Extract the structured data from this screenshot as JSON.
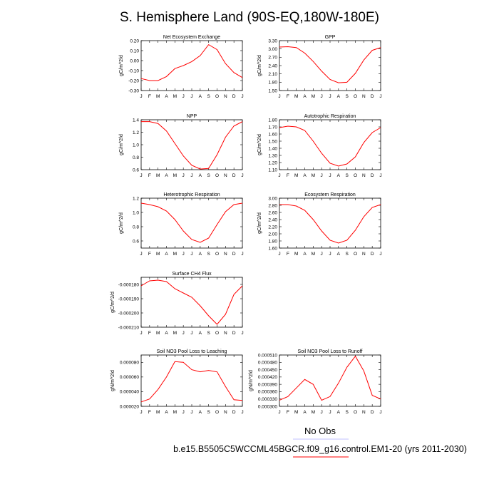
{
  "figure": {
    "title": "S. Hemisphere Land (90S-EQ,180W-180E)",
    "legend": [
      {
        "label": "No Obs",
        "color": "#c0c0ff"
      },
      {
        "label": "b.e15.B5505C5WCCML45BGCR.f09_g16.control.EM1-20 (yrs 2011-2030)",
        "color": "#ff0000"
      }
    ]
  },
  "chart_data": [
    {
      "type": "line",
      "title": "Net Ecosystem Exchange",
      "ylabel": "gC/m^2/d",
      "x": [
        "J",
        "F",
        "M",
        "A",
        "M",
        "J",
        "J",
        "A",
        "S",
        "O",
        "N",
        "D",
        "J"
      ],
      "ylim": [
        -0.3,
        0.2
      ],
      "yticks": [
        "0.20",
        "0.10",
        "0.00",
        "-0.10",
        "-0.20",
        "-0.30"
      ],
      "ytick_values": [
        0.2,
        0.1,
        0.0,
        -0.1,
        -0.2,
        -0.3
      ],
      "series": [
        {
          "color": "#ff0000",
          "values": [
            -0.18,
            -0.2,
            -0.2,
            -0.16,
            -0.08,
            -0.05,
            -0.01,
            0.05,
            0.16,
            0.11,
            -0.03,
            -0.12,
            -0.17
          ]
        }
      ]
    },
    {
      "type": "line",
      "title": "GPP",
      "ylabel": "gC/m^2/d",
      "x": [
        "J",
        "F",
        "M",
        "A",
        "M",
        "J",
        "J",
        "A",
        "S",
        "O",
        "N",
        "D",
        "J"
      ],
      "ylim": [
        1.5,
        3.3
      ],
      "yticks": [
        "3.30",
        "3.00",
        "2.70",
        "2.40",
        "2.10",
        "1.80",
        "1.50"
      ],
      "ytick_values": [
        3.3,
        3.0,
        2.7,
        2.4,
        2.1,
        1.8,
        1.5
      ],
      "series": [
        {
          "color": "#ff0000",
          "values": [
            3.07,
            3.08,
            3.05,
            2.85,
            2.55,
            2.2,
            1.9,
            1.78,
            1.8,
            2.12,
            2.6,
            2.95,
            3.05
          ]
        }
      ]
    },
    {
      "type": "line",
      "title": "NPP",
      "ylabel": "gC/m^2/d",
      "x": [
        "J",
        "F",
        "M",
        "A",
        "M",
        "J",
        "J",
        "A",
        "S",
        "O",
        "N",
        "D",
        "J"
      ],
      "ylim": [
        0.6,
        1.4
      ],
      "yticks": [
        "1.4",
        "1.2",
        "1.0",
        "0.8",
        "0.6"
      ],
      "ytick_values": [
        1.4,
        1.2,
        1.0,
        0.8,
        0.6
      ],
      "series": [
        {
          "color": "#ff0000",
          "values": [
            1.37,
            1.37,
            1.34,
            1.22,
            1.02,
            0.82,
            0.67,
            0.61,
            0.62,
            0.84,
            1.12,
            1.3,
            1.37
          ]
        }
      ]
    },
    {
      "type": "line",
      "title": "Autotrophic Respiration",
      "ylabel": "gC/m^2/d",
      "x": [
        "J",
        "F",
        "M",
        "A",
        "M",
        "J",
        "J",
        "A",
        "S",
        "O",
        "N",
        "D",
        "J"
      ],
      "ylim": [
        1.1,
        1.8
      ],
      "yticks": [
        "1.80",
        "1.70",
        "1.60",
        "1.50",
        "1.40",
        "1.30",
        "1.20",
        "1.10"
      ],
      "ytick_values": [
        1.8,
        1.7,
        1.6,
        1.5,
        1.4,
        1.3,
        1.2,
        1.1
      ],
      "series": [
        {
          "color": "#ff0000",
          "values": [
            1.69,
            1.71,
            1.7,
            1.65,
            1.5,
            1.33,
            1.19,
            1.15,
            1.18,
            1.28,
            1.48,
            1.62,
            1.69
          ]
        }
      ]
    },
    {
      "type": "line",
      "title": "Heterotrophic Respiration",
      "ylabel": "gC/m^2/d",
      "x": [
        "J",
        "F",
        "M",
        "A",
        "M",
        "J",
        "J",
        "A",
        "S",
        "O",
        "N",
        "D",
        "J"
      ],
      "ylim": [
        0.5,
        1.2
      ],
      "yticks": [
        "1.2",
        "1.0",
        "0.8",
        "0.6"
      ],
      "ytick_values": [
        1.2,
        1.0,
        0.8,
        0.6
      ],
      "series": [
        {
          "color": "#ff0000",
          "values": [
            1.13,
            1.11,
            1.08,
            1.02,
            0.9,
            0.74,
            0.62,
            0.58,
            0.64,
            0.83,
            1.01,
            1.11,
            1.13
          ]
        }
      ]
    },
    {
      "type": "line",
      "title": "Ecosystem Respiration",
      "ylabel": "gC/m^2/d",
      "x": [
        "J",
        "F",
        "M",
        "A",
        "M",
        "J",
        "J",
        "A",
        "S",
        "O",
        "N",
        "D",
        "J"
      ],
      "ylim": [
        1.6,
        3.0
      ],
      "yticks": [
        "3.00",
        "2.80",
        "2.60",
        "2.40",
        "2.20",
        "2.00",
        "1.80",
        "1.60"
      ],
      "ytick_values": [
        3.0,
        2.8,
        2.6,
        2.4,
        2.2,
        2.0,
        1.8,
        1.6
      ],
      "series": [
        {
          "color": "#ff0000",
          "values": [
            2.82,
            2.82,
            2.78,
            2.66,
            2.4,
            2.08,
            1.82,
            1.74,
            1.82,
            2.1,
            2.48,
            2.74,
            2.82
          ]
        }
      ]
    },
    {
      "type": "line",
      "title": "Surface CH4 Flux",
      "ylabel": "gC/m^2/d",
      "x": [
        "J",
        "F",
        "M",
        "A",
        "M",
        "J",
        "J",
        "A",
        "S",
        "O",
        "N",
        "D",
        "J"
      ],
      "ylim": [
        -0.00021,
        -0.000175
      ],
      "yticks": [
        "-0.000180",
        "-0.000190",
        "-0.000200",
        "-0.000210"
      ],
      "ytick_values": [
        -0.00018,
        -0.00019,
        -0.0002,
        -0.00021
      ],
      "series": [
        {
          "color": "#ff0000",
          "values": [
            -0.000181,
            -0.0001775,
            -0.000177,
            -0.000178,
            -0.000183,
            -0.000186,
            -0.000189,
            -0.000195,
            -0.000202,
            -0.000208,
            -0.000201,
            -0.000187,
            -0.000181
          ]
        }
      ]
    },
    {
      "type": "line",
      "title": "Soil NO3 Pool Loss to Leaching",
      "ylabel": "gN/m^2/d",
      "x": [
        "J",
        "F",
        "M",
        "A",
        "M",
        "J",
        "J",
        "A",
        "S",
        "O",
        "N",
        "D",
        "J"
      ],
      "ylim": [
        2e-05,
        9e-05
      ],
      "yticks": [
        "0.000080",
        "0.000060",
        "0.000040",
        "0.000020"
      ],
      "ytick_values": [
        8e-05,
        6e-05,
        4e-05,
        2e-05
      ],
      "series": [
        {
          "color": "#ff0000",
          "values": [
            2.6e-05,
            3e-05,
            4.3e-05,
            6e-05,
            8.1e-05,
            8e-05,
            7e-05,
            6.7e-05,
            6.9e-05,
            6.7e-05,
            4.7e-05,
            2.9e-05,
            2.8e-05
          ]
        }
      ]
    },
    {
      "type": "line",
      "title": "Soil NO3 Pool Loss to Runoff",
      "ylabel": "gN/m^2/d",
      "x": [
        "J",
        "F",
        "M",
        "A",
        "M",
        "J",
        "J",
        "A",
        "S",
        "O",
        "N",
        "D",
        "J"
      ],
      "ylim": [
        0.0003,
        0.00051
      ],
      "yticks": [
        "0.000510",
        "0.000480",
        "0.000450",
        "0.000420",
        "0.000390",
        "0.000360",
        "0.000330",
        "0.000300"
      ],
      "ytick_values": [
        0.00051,
        0.00048,
        0.00045,
        0.00042,
        0.00039,
        0.00036,
        0.00033,
        0.0003
      ],
      "series": [
        {
          "color": "#ff0000",
          "values": [
            0.000325,
            0.00034,
            0.000375,
            0.00041,
            0.00039,
            0.000325,
            0.00034,
            0.000395,
            0.00046,
            0.000505,
            0.000445,
            0.000345,
            0.00033
          ]
        }
      ]
    }
  ]
}
